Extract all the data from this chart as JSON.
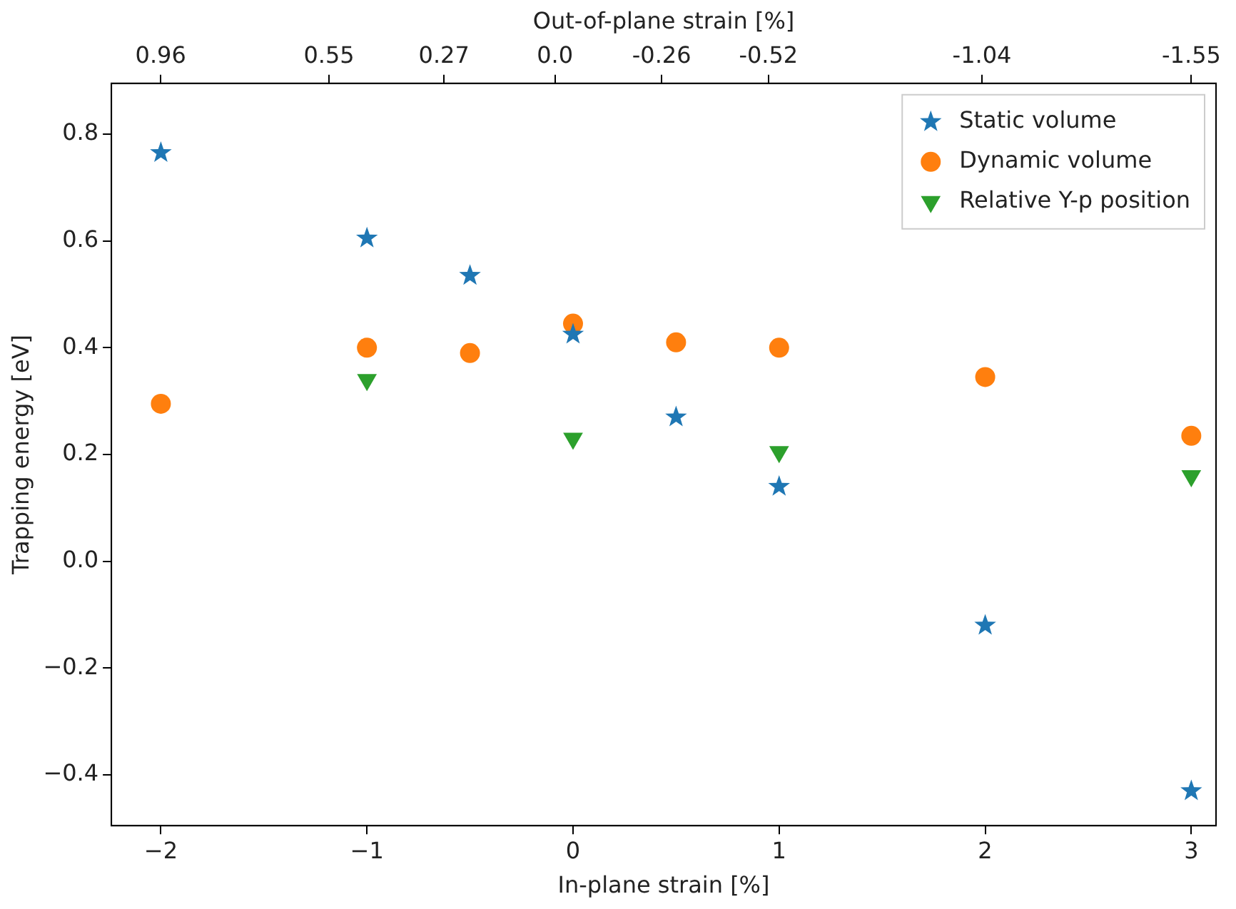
{
  "chart_data": {
    "type": "scatter",
    "xlabel": "In-plane strain [%]",
    "ylabel": "Trapping energy [eV]",
    "x2label": "Out-of-plane strain [%]",
    "xlim": [
      -2.24,
      3.12
    ],
    "xticks": [
      {
        "value": -2,
        "label": "−2"
      },
      {
        "value": -1,
        "label": "−1"
      },
      0,
      1,
      2,
      3
    ],
    "x2lim": [
      1.08,
      -1.61
    ],
    "x2ticks": [
      0.96,
      0.55,
      0.27,
      {
        "value": 0,
        "label": "0.0"
      },
      -0.26,
      -0.52,
      -1.04,
      -1.55
    ],
    "ylim": [
      -0.495,
      0.895
    ],
    "yticks": [
      {
        "value": -0.4,
        "label": "−0.4"
      },
      {
        "value": -0.2,
        "label": "−0.2"
      },
      {
        "value": 0,
        "label": "0.0"
      },
      {
        "value": 0.2,
        "label": "0.2"
      },
      {
        "value": 0.4,
        "label": "0.4"
      },
      {
        "value": 0.6,
        "label": "0.6"
      },
      {
        "value": 0.8,
        "label": "0.8"
      }
    ],
    "grid": false,
    "legend": "top right",
    "series": [
      {
        "name": "Static volume",
        "color": "#1f77b4",
        "marker": "star",
        "x": [
          -2,
          -1,
          -0.5,
          0,
          0.5,
          1,
          2,
          3
        ],
        "values": [
          0.765,
          0.605,
          0.535,
          0.425,
          0.27,
          0.14,
          -0.12,
          -0.43
        ]
      },
      {
        "name": "Dynamic volume",
        "color": "#ff7f0e",
        "marker": "circle",
        "x": [
          -2,
          -1,
          -0.5,
          0,
          0.5,
          1,
          2,
          3
        ],
        "values": [
          0.295,
          0.4,
          0.39,
          0.445,
          0.41,
          0.4,
          0.345,
          0.235
        ]
      },
      {
        "name": "Relative Y-p position",
        "color": "#2ca02c",
        "marker": "triangle",
        "x": [
          -1,
          0,
          1,
          3
        ],
        "values": [
          0.34,
          0.23,
          0.205,
          0.16
        ]
      }
    ]
  }
}
